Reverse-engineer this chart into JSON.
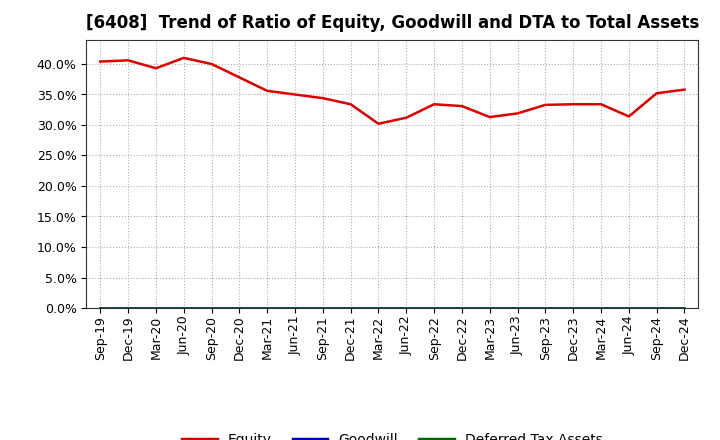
{
  "title": "[6408]  Trend of Ratio of Equity, Goodwill and DTA to Total Assets",
  "x_labels": [
    "Sep-19",
    "Dec-19",
    "Mar-20",
    "Jun-20",
    "Sep-20",
    "Dec-20",
    "Mar-21",
    "Jun-21",
    "Sep-21",
    "Dec-21",
    "Mar-22",
    "Jun-22",
    "Sep-22",
    "Dec-22",
    "Mar-23",
    "Jun-23",
    "Sep-23",
    "Dec-23",
    "Mar-24",
    "Jun-24",
    "Sep-24",
    "Dec-24"
  ],
  "equity": [
    0.404,
    0.406,
    0.393,
    0.41,
    0.4,
    0.378,
    0.356,
    0.35,
    0.344,
    0.334,
    0.302,
    0.312,
    0.334,
    0.331,
    0.313,
    0.319,
    0.333,
    0.334,
    0.334,
    0.314,
    0.352,
    0.358
  ],
  "goodwill": [
    0.0,
    0.0,
    0.0,
    0.0,
    0.0,
    0.0,
    0.0,
    0.0,
    0.0,
    0.0,
    0.0,
    0.0,
    0.0,
    0.0,
    0.0,
    0.0,
    0.0,
    0.0,
    0.0,
    0.0,
    0.0,
    0.0
  ],
  "dta": [
    0.0,
    0.0,
    0.0,
    0.0,
    0.0,
    0.0,
    0.0,
    0.0,
    0.0,
    0.0,
    0.0,
    0.0,
    0.0,
    0.0,
    0.0,
    0.0,
    0.0,
    0.0,
    0.0,
    0.0,
    0.0,
    0.0
  ],
  "equity_color": "#dd0000",
  "goodwill_color": "#0000cc",
  "dta_color": "#006600",
  "background_color": "#ffffff",
  "grid_color": "#999999",
  "ylim": [
    0.0,
    0.44
  ],
  "yticks": [
    0.0,
    0.05,
    0.1,
    0.15,
    0.2,
    0.25,
    0.3,
    0.35,
    0.4
  ],
  "legend_labels": [
    "Equity",
    "Goodwill",
    "Deferred Tax Assets"
  ],
  "title_fontsize": 12,
  "tick_fontsize": 9,
  "legend_fontsize": 10
}
